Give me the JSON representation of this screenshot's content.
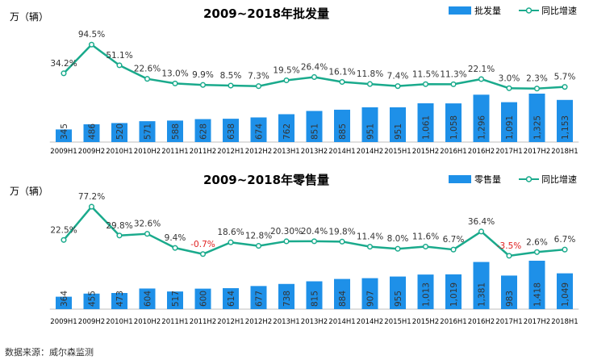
{
  "source": "数据来源：威尔森监测",
  "chart_data": [
    {
      "type": "bar",
      "title": "2009~2018年批发量",
      "unit_label": "万（辆）",
      "legend": {
        "bar": "批发量",
        "line": "同比增速",
        "placement": "top-right"
      },
      "categories": [
        "2009H1",
        "2009H2",
        "2010H1",
        "2010H2",
        "2011H1",
        "2011H2",
        "2012H1",
        "2012H2",
        "2013H1",
        "2013H2",
        "2014H1",
        "2014H2",
        "2015H1",
        "2015H2",
        "2016H1",
        "2016H2",
        "2017H1",
        "2017H2",
        "2018H1"
      ],
      "series": [
        {
          "name": "批发量",
          "type": "bar",
          "values": [
            345,
            486,
            520,
            571,
            588,
            628,
            638,
            674,
            762,
            851,
            885,
            951,
            951,
            1061,
            1058,
            1296,
            1091,
            1325,
            1153
          ],
          "labels": [
            "345",
            "486",
            "520",
            "571",
            "588",
            "628",
            "638",
            "674",
            "762",
            "851",
            "885",
            "951",
            "951",
            "1,061",
            "1,058",
            "1,296",
            "1,091",
            "1,325",
            "1,153"
          ],
          "color": "#1e90e8"
        },
        {
          "name": "同比增速",
          "type": "line",
          "values": [
            34.2,
            94.5,
            51.1,
            22.6,
            13.0,
            9.9,
            8.5,
            7.3,
            19.5,
            26.4,
            16.1,
            11.8,
            7.4,
            11.5,
            11.3,
            22.1,
            3.0,
            2.3,
            5.7
          ],
          "labels": [
            "34.2%",
            "94.5%",
            "51.1%",
            "22.6%",
            "13.0%",
            "9.9%",
            "8.5%",
            "7.3%",
            "19.5%",
            "26.4%",
            "16.1%",
            "11.8%",
            "7.4%",
            "11.5%",
            "11.3%",
            "22.1%",
            "3.0%",
            "2.3%",
            "5.7%"
          ],
          "color": "#1aaa8c"
        }
      ],
      "bar_range": [
        0,
        1400
      ],
      "line_range": [
        -5,
        100
      ],
      "negative_label_color": "#e02020"
    },
    {
      "type": "bar",
      "title": "2009~2018年零售量",
      "unit_label": "万（辆）",
      "legend": {
        "bar": "零售量",
        "line": "同比增速",
        "placement": "top-right"
      },
      "categories": [
        "2009H1",
        "2009H2",
        "2010H1",
        "2010H2",
        "2011H1",
        "2011H2",
        "2012H1",
        "2012H2",
        "2013H1",
        "2013H2",
        "2014H1",
        "2014H2",
        "2015H1",
        "2015H2",
        "2016H1",
        "2016H2",
        "2017H1",
        "2017H2",
        "2018H1"
      ],
      "series": [
        {
          "name": "零售量",
          "type": "bar",
          "values": [
            364,
            455,
            473,
            604,
            517,
            600,
            614,
            677,
            738,
            815,
            884,
            907,
            955,
            1013,
            1019,
            1381,
            983,
            1418,
            1049
          ],
          "labels": [
            "364",
            "455",
            "473",
            "604",
            "517",
            "600",
            "614",
            "677",
            "738",
            "815",
            "884",
            "907",
            "955",
            "1,013",
            "1,019",
            "1,381",
            "983",
            "1,418",
            "1,049"
          ],
          "color": "#1e90e8"
        },
        {
          "name": "同比增速",
          "type": "line",
          "values": [
            22.5,
            77.2,
            29.8,
            32.6,
            9.4,
            -0.7,
            18.6,
            12.8,
            20.3,
            20.4,
            19.8,
            11.4,
            8.0,
            11.6,
            6.7,
            36.4,
            -3.5,
            2.6,
            6.7
          ],
          "labels": [
            "22.5%",
            "77.2%",
            "29.8%",
            "32.6%",
            "9.4%",
            "-0.7%",
            "18.6%",
            "12.8%",
            "20.30%",
            "20.4%",
            "19.8%",
            "11.4%",
            "8.0%",
            "11.6%",
            "6.7%",
            "36.4%",
            "-3.5%",
            "2.6%",
            "6.7%"
          ],
          "color": "#1aaa8c"
        }
      ],
      "bar_range": [
        0,
        1500
      ],
      "line_range": [
        -5,
        80
      ],
      "negative_label_color": "#e02020"
    }
  ]
}
